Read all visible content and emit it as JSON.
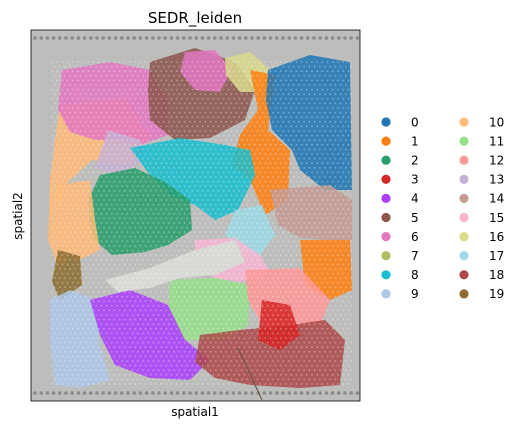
{
  "chart_data": {
    "type": "scatter",
    "title": "SEDR_leiden",
    "xlabel": "spatial1",
    "ylabel": "spatial2",
    "grid": false,
    "legend_placement": "right",
    "background": "tissue histology image",
    "series": [
      {
        "name": "0",
        "color": "#1f77b4"
      },
      {
        "name": "1",
        "color": "#ff7f0e"
      },
      {
        "name": "2",
        "color": "#279e68"
      },
      {
        "name": "3",
        "color": "#d62728"
      },
      {
        "name": "4",
        "color": "#aa40fc"
      },
      {
        "name": "5",
        "color": "#8c564b"
      },
      {
        "name": "6",
        "color": "#e377c2"
      },
      {
        "name": "7",
        "color": "#b5bd61"
      },
      {
        "name": "8",
        "color": "#17becf"
      },
      {
        "name": "9",
        "color": "#aec7e8"
      },
      {
        "name": "10",
        "color": "#ffbb78"
      },
      {
        "name": "11",
        "color": "#98df8a"
      },
      {
        "name": "12",
        "color": "#ff9896"
      },
      {
        "name": "13",
        "color": "#c5b0d5"
      },
      {
        "name": "14",
        "color": "#c49c94"
      },
      {
        "name": "15",
        "color": "#f7b6d2"
      },
      {
        "name": "16",
        "color": "#dbdb8d"
      },
      {
        "name": "17",
        "color": "#9edae5"
      },
      {
        "name": "18",
        "color": "#ad494a"
      },
      {
        "name": "19",
        "color": "#8c6d31"
      }
    ]
  }
}
